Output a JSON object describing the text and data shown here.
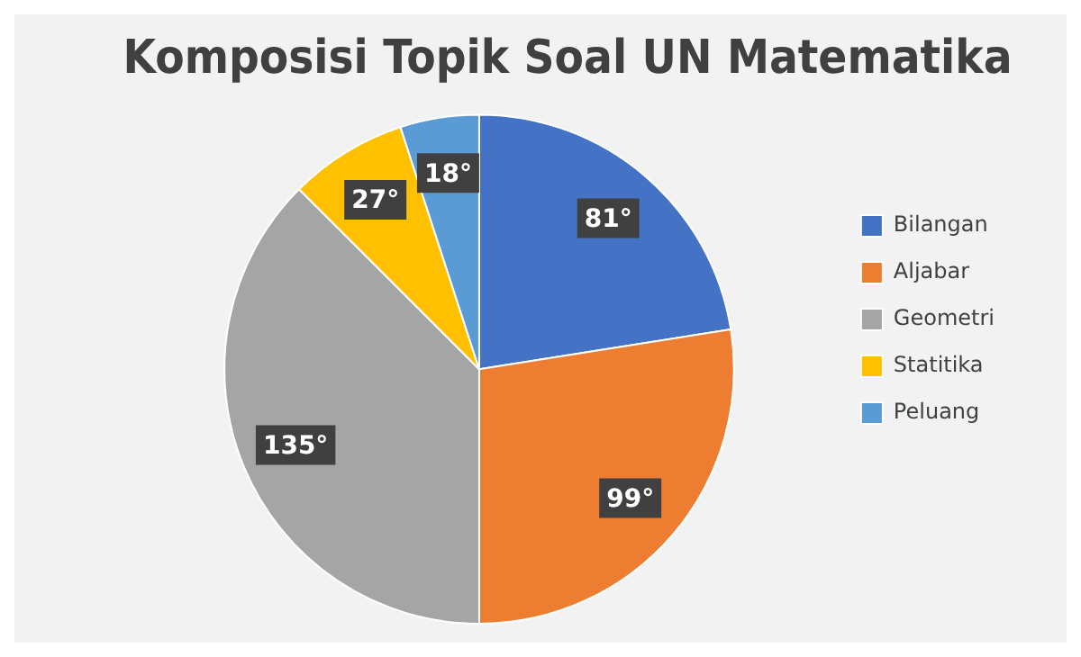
{
  "chart_data": {
    "type": "pie",
    "title": "Komposisi Topik Soal UN Matematika",
    "categories": [
      "Bilangan",
      "Aljabar",
      "Geometri",
      "Statitika",
      "Peluang"
    ],
    "values": [
      81,
      99,
      135,
      27,
      18
    ],
    "value_labels": [
      "81°",
      "99°",
      "135°",
      "27°",
      "18°"
    ],
    "colors": [
      "#4472c4",
      "#ed7d31",
      "#a5a5a5",
      "#ffc000",
      "#5b9bd5"
    ],
    "legend": "right"
  }
}
